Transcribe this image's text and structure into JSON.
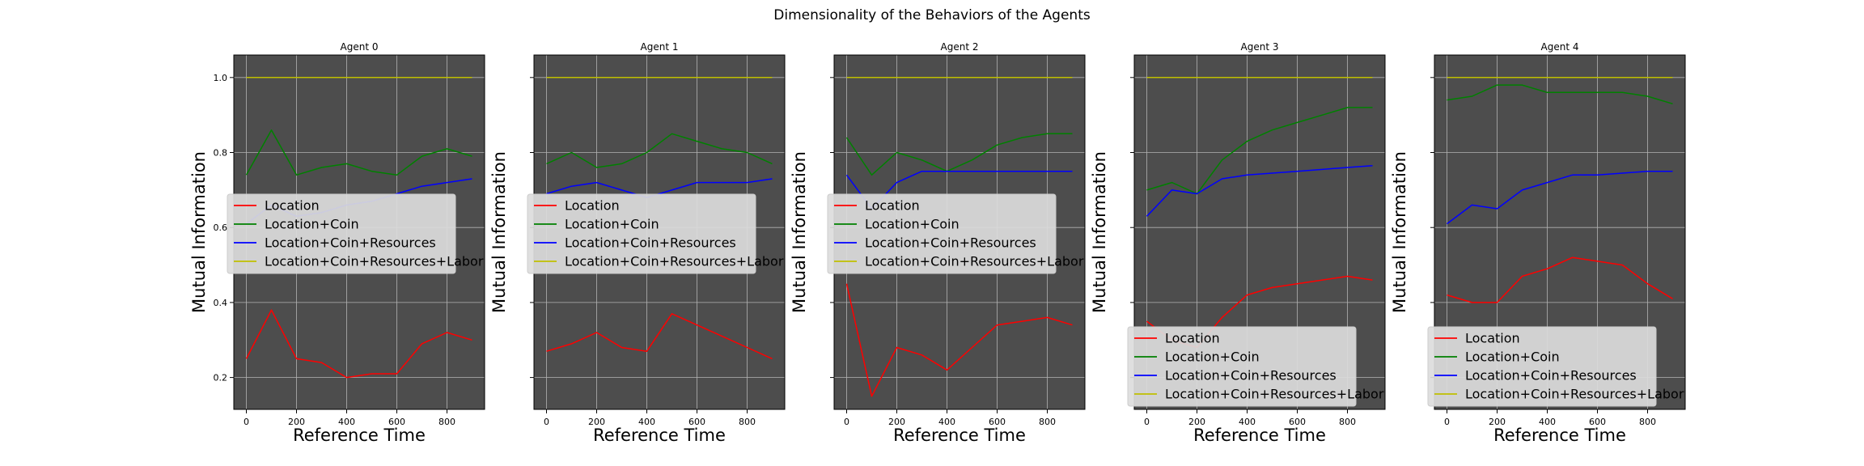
{
  "figure": {
    "title": "Dimensionality of the Behaviors of the Agents",
    "background": "#ffffff",
    "axes_facecolor": "#4d4d4d",
    "grid_color": "#b3b3b3",
    "legend_facecolor": "#dcdcdc"
  },
  "chart_data": [
    {
      "type": "line",
      "title": "Agent 0",
      "xlabel": "Reference Time",
      "ylabel": "Mutual Information",
      "x": [
        0,
        100,
        200,
        300,
        400,
        500,
        600,
        700,
        800,
        900
      ],
      "xlim": [
        -50,
        950
      ],
      "ylim": [
        0.115,
        1.06
      ],
      "xticks": [
        "0",
        "200",
        "400",
        "600",
        "800"
      ],
      "yticks": [
        "0.2",
        "0.4",
        "0.6",
        "0.8",
        "1.0"
      ],
      "grid": true,
      "legend_position": "center-left",
      "series": [
        {
          "name": "Location",
          "color": "#ff0000",
          "values": [
            0.25,
            0.38,
            0.25,
            0.24,
            0.2,
            0.21,
            0.21,
            0.29,
            0.32,
            0.3
          ]
        },
        {
          "name": "Location+Coin",
          "color": "#008000",
          "values": [
            0.74,
            0.86,
            0.74,
            0.76,
            0.77,
            0.75,
            0.74,
            0.79,
            0.81,
            0.79
          ]
        },
        {
          "name": "Location+Coin+Resources",
          "color": "#0000ff",
          "values": [
            0.61,
            0.66,
            0.63,
            0.64,
            0.66,
            0.67,
            0.69,
            0.71,
            0.72,
            0.73
          ]
        },
        {
          "name": "Location+Coin+Resources+Labor",
          "color": "#bfbf00",
          "values": [
            1.0,
            1.0,
            1.0,
            1.0,
            1.0,
            1.0,
            1.0,
            1.0,
            1.0,
            1.0
          ]
        }
      ]
    },
    {
      "type": "line",
      "title": "Agent 1",
      "xlabel": "Reference Time",
      "ylabel": "Mutual Information",
      "x": [
        0,
        100,
        200,
        300,
        400,
        500,
        600,
        700,
        800,
        900
      ],
      "xlim": [
        -50,
        950
      ],
      "ylim": [
        0.115,
        1.06
      ],
      "xticks": [
        "0",
        "200",
        "400",
        "600",
        "800"
      ],
      "yticks": [],
      "grid": true,
      "legend_position": "center-left",
      "series": [
        {
          "name": "Location",
          "color": "#ff0000",
          "values": [
            0.27,
            0.29,
            0.32,
            0.28,
            0.27,
            0.37,
            0.34,
            0.31,
            0.28,
            0.25
          ]
        },
        {
          "name": "Location+Coin",
          "color": "#008000",
          "values": [
            0.77,
            0.8,
            0.76,
            0.77,
            0.8,
            0.85,
            0.83,
            0.81,
            0.8,
            0.77
          ]
        },
        {
          "name": "Location+Coin+Resources",
          "color": "#0000ff",
          "values": [
            0.69,
            0.71,
            0.72,
            0.7,
            0.68,
            0.7,
            0.72,
            0.72,
            0.72,
            0.73
          ]
        },
        {
          "name": "Location+Coin+Resources+Labor",
          "color": "#bfbf00",
          "values": [
            1.0,
            1.0,
            1.0,
            1.0,
            1.0,
            1.0,
            1.0,
            1.0,
            1.0,
            1.0
          ]
        }
      ]
    },
    {
      "type": "line",
      "title": "Agent 2",
      "xlabel": "Reference Time",
      "ylabel": "Mutual Information",
      "x": [
        0,
        100,
        200,
        300,
        400,
        500,
        600,
        700,
        800,
        900
      ],
      "xlim": [
        -50,
        950
      ],
      "ylim": [
        0.115,
        1.06
      ],
      "xticks": [
        "0",
        "200",
        "400",
        "600",
        "800"
      ],
      "yticks": [],
      "grid": true,
      "legend_position": "center-left",
      "series": [
        {
          "name": "Location",
          "color": "#ff0000",
          "values": [
            0.45,
            0.15,
            0.28,
            0.26,
            0.22,
            0.28,
            0.34,
            0.35,
            0.36,
            0.34
          ]
        },
        {
          "name": "Location+Coin",
          "color": "#008000",
          "values": [
            0.84,
            0.74,
            0.8,
            0.78,
            0.75,
            0.78,
            0.82,
            0.84,
            0.85,
            0.85
          ]
        },
        {
          "name": "Location+Coin+Resources",
          "color": "#0000ff",
          "values": [
            0.74,
            0.65,
            0.72,
            0.75,
            0.75,
            0.75,
            0.75,
            0.75,
            0.75,
            0.75
          ]
        },
        {
          "name": "Location+Coin+Resources+Labor",
          "color": "#bfbf00",
          "values": [
            1.0,
            1.0,
            1.0,
            1.0,
            1.0,
            1.0,
            1.0,
            1.0,
            1.0,
            1.0
          ]
        }
      ]
    },
    {
      "type": "line",
      "title": "Agent 3",
      "xlabel": "Reference Time",
      "ylabel": "Mutual Information",
      "x": [
        0,
        100,
        200,
        300,
        400,
        500,
        600,
        700,
        800,
        900
      ],
      "xlim": [
        -50,
        950
      ],
      "ylim": [
        0.115,
        1.06
      ],
      "xticks": [
        "0",
        "200",
        "400",
        "600",
        "800"
      ],
      "yticks": [],
      "grid": true,
      "legend_position": "lower-left",
      "series": [
        {
          "name": "Location",
          "color": "#ff0000",
          "values": [
            0.35,
            0.3,
            0.28,
            0.36,
            0.42,
            0.44,
            0.45,
            0.46,
            0.47,
            0.46
          ]
        },
        {
          "name": "Location+Coin",
          "color": "#008000",
          "values": [
            0.7,
            0.72,
            0.69,
            0.78,
            0.83,
            0.86,
            0.88,
            0.9,
            0.92,
            0.92
          ]
        },
        {
          "name": "Location+Coin+Resources",
          "color": "#0000ff",
          "values": [
            0.63,
            0.7,
            0.69,
            0.73,
            0.74,
            0.745,
            0.75,
            0.755,
            0.76,
            0.765
          ]
        },
        {
          "name": "Location+Coin+Resources+Labor",
          "color": "#bfbf00",
          "values": [
            1.0,
            1.0,
            1.0,
            1.0,
            1.0,
            1.0,
            1.0,
            1.0,
            1.0,
            1.0
          ]
        }
      ]
    },
    {
      "type": "line",
      "title": "Agent 4",
      "xlabel": "Reference Time",
      "ylabel": "Mutual Information",
      "x": [
        0,
        100,
        200,
        300,
        400,
        500,
        600,
        700,
        800,
        900
      ],
      "xlim": [
        -50,
        950
      ],
      "ylim": [
        0.115,
        1.06
      ],
      "xticks": [
        "0",
        "200",
        "400",
        "600",
        "800"
      ],
      "yticks": [],
      "grid": true,
      "legend_position": "lower-left",
      "series": [
        {
          "name": "Location",
          "color": "#ff0000",
          "values": [
            0.42,
            0.4,
            0.4,
            0.47,
            0.49,
            0.52,
            0.51,
            0.5,
            0.45,
            0.41
          ]
        },
        {
          "name": "Location+Coin",
          "color": "#008000",
          "values": [
            0.94,
            0.95,
            0.98,
            0.98,
            0.96,
            0.96,
            0.96,
            0.96,
            0.95,
            0.93
          ]
        },
        {
          "name": "Location+Coin+Resources",
          "color": "#0000ff",
          "values": [
            0.61,
            0.66,
            0.65,
            0.7,
            0.72,
            0.74,
            0.74,
            0.745,
            0.75,
            0.75
          ]
        },
        {
          "name": "Location+Coin+Resources+Labor",
          "color": "#bfbf00",
          "values": [
            1.0,
            1.0,
            1.0,
            1.0,
            1.0,
            1.0,
            1.0,
            1.0,
            1.0,
            1.0
          ]
        }
      ]
    }
  ]
}
